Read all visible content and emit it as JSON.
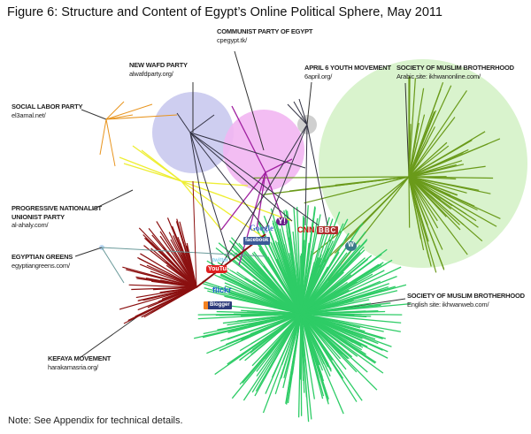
{
  "title": "Figure 6: Structure and Content of Egypt’s Online Political Sphere, May 2011",
  "note": "Note: See Appendix for technical details.",
  "labels": {
    "communist": {
      "name": "COMMUNIST PARTY OF EGYPT",
      "site": "cpegypt.tk/"
    },
    "new_wafd": {
      "name": "NEW WAFD PARTY",
      "site": "alwafdparty.org/"
    },
    "april6": {
      "name": "APRIL 6 YOUTH MOVEMENT",
      "site": "6april.org/"
    },
    "mb_arabic": {
      "name": "SOCIETY OF MUSLIM BROTHERHOOD",
      "site": "Arabic site: ikhwanonline.com/"
    },
    "social_labor": {
      "name": "SOCIAL LABOR PARTY",
      "site": "el3amal.net/"
    },
    "progressive": {
      "name": "PROGRESSIVE NATIONALIST UNIONIST PARTY",
      "site": "al-ahaly.com/"
    },
    "greens": {
      "name": "EGYPTIAN GREENS",
      "site": "egyptiangreens.com/"
    },
    "kefaya": {
      "name": "KEFAYA MOVEMENT",
      "site": "harakamasria.org/"
    },
    "mb_english": {
      "name": "SOCIETY OF MUSLIM BROTHERHOOD",
      "site": "English site: ikhwanweb.com/"
    }
  },
  "logos": {
    "google": "Google",
    "yahoo": "Y!",
    "cnn": "CNN",
    "bbc": "BBC",
    "facebook": "facebook",
    "twitter": "twitter",
    "youtube": "YouTube",
    "flickr": "flickr",
    "blogger": "Blogger",
    "wordpress": "W"
  },
  "colors": {
    "new_wafd_cluster": "#c9c9ee",
    "communist_cluster": "#f2b6f2",
    "april6_cluster": "#cfcfcf",
    "mb_arabic_cluster": "#d9f3cd",
    "mb_arabic_edges": "#6a9a1a",
    "mb_english_edges": "#2ecc66",
    "kefaya_edges": "#8b1010",
    "social_labor_edges": "#e8951f",
    "progressive_edges": "#eeee33",
    "communist_edges": "#a020a0",
    "greens_edges": "#6a9a9a",
    "link_edges": "#333344"
  }
}
